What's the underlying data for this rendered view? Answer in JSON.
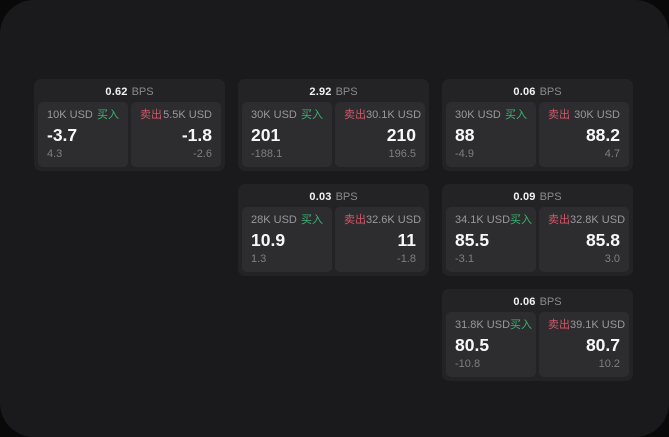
{
  "labels": {
    "buy": "买入",
    "sell": "卖出",
    "bps_unit": "BPS"
  },
  "colors": {
    "background": "#09090a",
    "panel": "#1a1a1c",
    "card": "#232326",
    "pane": "#2d2d30",
    "buy_accent": "#3cb371",
    "sell_accent": "#d15668",
    "primary_text": "#f7f7f8",
    "muted_text": "#98989d",
    "secondary_text": "#7e7e83"
  },
  "cards": [
    {
      "bps": "0.62",
      "buy": {
        "notional": "10K USD",
        "price": "-3.7",
        "secondary": "4.3"
      },
      "sell": {
        "notional": "5.5K USD",
        "price": "-1.8",
        "secondary": "-2.6"
      }
    },
    {
      "bps": "2.92",
      "buy": {
        "notional": "30K USD",
        "price": "201",
        "secondary": "-188.1"
      },
      "sell": {
        "notional": "30.1K USD",
        "price": "210",
        "secondary": "196.5"
      }
    },
    {
      "bps": "0.06",
      "buy": {
        "notional": "30K USD",
        "price": "88",
        "secondary": "-4.9"
      },
      "sell": {
        "notional": "30K USD",
        "price": "88.2",
        "secondary": "4.7"
      }
    },
    {
      "bps": "0.03",
      "buy": {
        "notional": "28K USD",
        "price": "10.9",
        "secondary": "1.3"
      },
      "sell": {
        "notional": "32.6K USD",
        "price": "11",
        "secondary": "-1.8"
      }
    },
    {
      "bps": "0.09",
      "buy": {
        "notional": "34.1K USD",
        "price": "85.5",
        "secondary": "-3.1"
      },
      "sell": {
        "notional": "32.8K USD",
        "price": "85.8",
        "secondary": "3.0"
      }
    },
    {
      "bps": "0.06",
      "buy": {
        "notional": "31.8K USD",
        "price": "80.5",
        "secondary": "-10.8"
      },
      "sell": {
        "notional": "39.1K USD",
        "price": "80.7",
        "secondary": "10.2"
      }
    }
  ]
}
